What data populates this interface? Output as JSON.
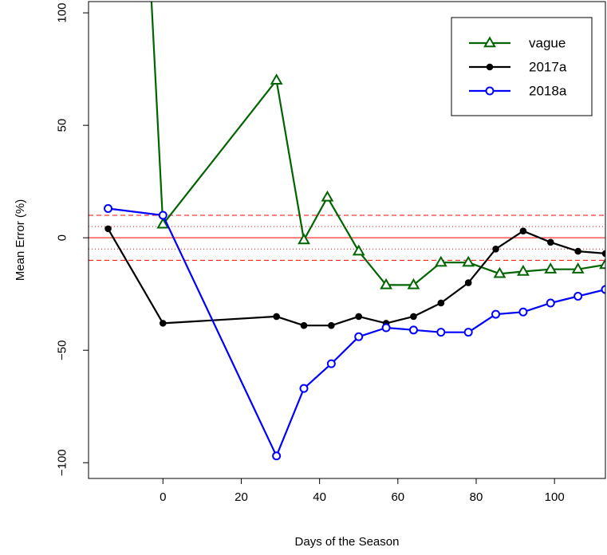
{
  "chart_data": {
    "type": "line",
    "title": "",
    "xlabel": "Days of the Season",
    "ylabel": "Mean Error (%)",
    "xlim": [
      -19,
      113
    ],
    "ylim": [
      -107,
      105
    ],
    "x_ticks": [
      0,
      20,
      40,
      60,
      80,
      100
    ],
    "y_ticks": [
      -100,
      -50,
      0,
      50,
      100
    ],
    "y_tick_labels": [
      "−100",
      "−50",
      "0",
      "50",
      "100"
    ],
    "legend_position": "top-right",
    "reference_lines": [
      {
        "y": 0,
        "style": "solid",
        "color": "#ff0000"
      },
      {
        "y": 10,
        "style": "dashed",
        "color": "#ff0000"
      },
      {
        "y": -10,
        "style": "dashed",
        "color": "#ff0000"
      },
      {
        "y": 5,
        "style": "dotted",
        "color": "#ff0000"
      },
      {
        "y": -5,
        "style": "dotted",
        "color": "#ff0000"
      }
    ],
    "series": [
      {
        "name": "vague",
        "color": "#006400",
        "marker": "triangle-open",
        "x": [
          -3,
          0,
          29,
          36,
          42,
          50,
          57,
          64,
          71,
          78,
          86,
          92,
          99,
          106,
          113
        ],
        "y": [
          108,
          6,
          70,
          -1,
          18,
          -6,
          -21,
          -21,
          -11,
          -11,
          -16,
          -15,
          -14,
          -14,
          -12
        ]
      },
      {
        "name": "2017a",
        "color": "#000000",
        "marker": "circle-filled",
        "x": [
          -14,
          0,
          29,
          36,
          43,
          50,
          57,
          64,
          71,
          78,
          85,
          92,
          99,
          106,
          113
        ],
        "y": [
          4,
          -38,
          -35,
          -39,
          -39,
          -35,
          -38,
          -35,
          -29,
          -20,
          -5,
          3,
          -2,
          -6,
          -7
        ]
      },
      {
        "name": "2018a",
        "color": "#0000ff",
        "marker": "circle-open",
        "x": [
          -14,
          0,
          29,
          36,
          43,
          50,
          57,
          64,
          71,
          78,
          85,
          92,
          99,
          106,
          113
        ],
        "y": [
          13,
          10,
          -97,
          -67,
          -56,
          -44,
          -40,
          -41,
          -42,
          -42,
          -34,
          -33,
          -29,
          -26,
          -23
        ]
      }
    ]
  }
}
